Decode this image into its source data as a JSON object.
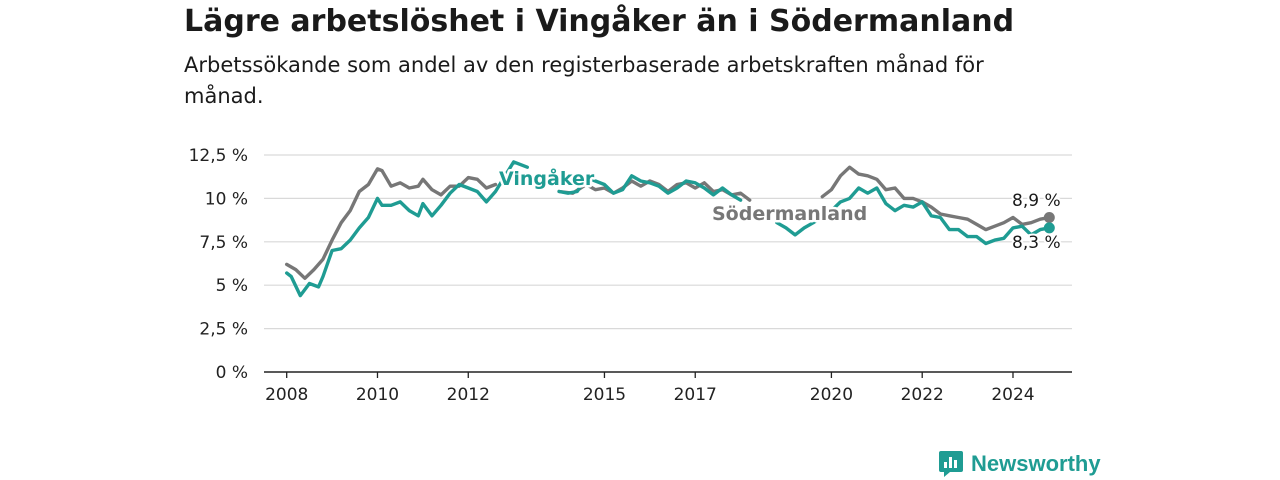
{
  "title": "Lägre arbetslöshet i Vingåker än i Södermanland",
  "subtitle": "Arbetssökande som andel av den registerbaserade arbetskraften månad för månad.",
  "brand": {
    "name": "Newsworthy",
    "icon": "newsworthy-logo-icon"
  },
  "colors": {
    "vingaker": "#1f9c93",
    "sodermanland": "#777777",
    "grid": "#d9d9d9",
    "axis": "#222222"
  },
  "chart_data": {
    "type": "line",
    "title": "",
    "xlabel": "",
    "ylabel": "",
    "xlim": [
      2007.5,
      2025.3
    ],
    "ylim": [
      0,
      12.5
    ],
    "y_ticks": [
      0,
      2.5,
      5,
      7.5,
      10,
      12.5
    ],
    "y_tick_labels": [
      "0 %",
      "2,5 %",
      "5 %",
      "7,5 %",
      "10 %",
      "12,5 %"
    ],
    "x_ticks": [
      2008,
      2010,
      2012,
      2015,
      2017,
      2020,
      2022,
      2024
    ],
    "x_tick_labels": [
      "2008",
      "2010",
      "2012",
      "2015",
      "2017",
      "2020",
      "2022",
      "2024"
    ],
    "grid": true,
    "legend": "inline labels",
    "series": [
      {
        "name": "Södermanland",
        "label": "Södermanland",
        "end_label": "8,9 %",
        "color": "#777777",
        "points": [
          [
            2008.0,
            6.2
          ],
          [
            2008.2,
            5.9
          ],
          [
            2008.4,
            5.4
          ],
          [
            2008.6,
            5.9
          ],
          [
            2008.8,
            6.5
          ],
          [
            2009.0,
            7.6
          ],
          [
            2009.2,
            8.6
          ],
          [
            2009.4,
            9.3
          ],
          [
            2009.6,
            10.4
          ],
          [
            2009.8,
            10.8
          ],
          [
            2010.0,
            11.7
          ],
          [
            2010.1,
            11.6
          ],
          [
            2010.3,
            10.7
          ],
          [
            2010.5,
            10.9
          ],
          [
            2010.7,
            10.6
          ],
          [
            2010.9,
            10.7
          ],
          [
            2011.0,
            11.1
          ],
          [
            2011.2,
            10.5
          ],
          [
            2011.4,
            10.2
          ],
          [
            2011.6,
            10.7
          ],
          [
            2011.8,
            10.7
          ],
          [
            2012.0,
            11.2
          ],
          [
            2012.2,
            11.1
          ],
          [
            2012.4,
            10.6
          ],
          [
            2012.6,
            10.8
          ],
          [
            2014.0,
            10.4
          ],
          [
            2014.3,
            10.3
          ],
          [
            2014.6,
            10.8
          ],
          [
            2014.8,
            10.5
          ],
          [
            2015.0,
            10.6
          ],
          [
            2015.2,
            10.3
          ],
          [
            2015.4,
            10.6
          ],
          [
            2015.6,
            11.0
          ],
          [
            2015.8,
            10.7
          ],
          [
            2016.0,
            11.0
          ],
          [
            2016.2,
            10.8
          ],
          [
            2016.4,
            10.4
          ],
          [
            2016.6,
            10.8
          ],
          [
            2016.8,
            10.9
          ],
          [
            2017.0,
            10.6
          ],
          [
            2017.2,
            10.9
          ],
          [
            2017.4,
            10.4
          ],
          [
            2017.6,
            10.5
          ],
          [
            2017.8,
            10.2
          ],
          [
            2018.0,
            10.3
          ],
          [
            2018.2,
            9.9
          ],
          [
            2019.8,
            10.1
          ],
          [
            2020.0,
            10.5
          ],
          [
            2020.2,
            11.3
          ],
          [
            2020.4,
            11.8
          ],
          [
            2020.6,
            11.4
          ],
          [
            2020.8,
            11.3
          ],
          [
            2021.0,
            11.1
          ],
          [
            2021.2,
            10.5
          ],
          [
            2021.4,
            10.6
          ],
          [
            2021.6,
            10.0
          ],
          [
            2021.8,
            10.0
          ],
          [
            2022.0,
            9.8
          ],
          [
            2022.2,
            9.5
          ],
          [
            2022.4,
            9.1
          ],
          [
            2022.6,
            9.0
          ],
          [
            2022.8,
            8.9
          ],
          [
            2023.0,
            8.8
          ],
          [
            2023.2,
            8.5
          ],
          [
            2023.4,
            8.2
          ],
          [
            2023.6,
            8.4
          ],
          [
            2023.8,
            8.6
          ],
          [
            2024.0,
            8.9
          ],
          [
            2024.2,
            8.5
          ],
          [
            2024.4,
            8.6
          ],
          [
            2024.6,
            8.8
          ],
          [
            2024.8,
            8.9
          ]
        ]
      },
      {
        "name": "Vingåker",
        "label": "Vingåker",
        "end_label": "8,3 %",
        "color": "#1f9c93",
        "points": [
          [
            2008.0,
            5.7
          ],
          [
            2008.1,
            5.5
          ],
          [
            2008.3,
            4.4
          ],
          [
            2008.5,
            5.1
          ],
          [
            2008.7,
            4.9
          ],
          [
            2008.8,
            5.5
          ],
          [
            2009.0,
            7.0
          ],
          [
            2009.2,
            7.1
          ],
          [
            2009.4,
            7.6
          ],
          [
            2009.6,
            8.3
          ],
          [
            2009.8,
            8.9
          ],
          [
            2010.0,
            10.0
          ],
          [
            2010.1,
            9.6
          ],
          [
            2010.3,
            9.6
          ],
          [
            2010.5,
            9.8
          ],
          [
            2010.7,
            9.3
          ],
          [
            2010.9,
            9.0
          ],
          [
            2011.0,
            9.7
          ],
          [
            2011.2,
            9.0
          ],
          [
            2011.4,
            9.6
          ],
          [
            2011.6,
            10.3
          ],
          [
            2011.8,
            10.8
          ],
          [
            2012.0,
            10.6
          ],
          [
            2012.2,
            10.4
          ],
          [
            2012.4,
            9.8
          ],
          [
            2012.6,
            10.4
          ],
          [
            2013.0,
            12.1
          ],
          [
            2013.3,
            11.8
          ],
          [
            2014.0,
            10.4
          ],
          [
            2014.2,
            10.3
          ],
          [
            2014.4,
            10.4
          ],
          [
            2014.6,
            11.2
          ],
          [
            2014.8,
            11.0
          ],
          [
            2015.0,
            10.8
          ],
          [
            2015.2,
            10.3
          ],
          [
            2015.4,
            10.5
          ],
          [
            2015.6,
            11.3
          ],
          [
            2015.8,
            11.0
          ],
          [
            2016.0,
            10.9
          ],
          [
            2016.2,
            10.7
          ],
          [
            2016.4,
            10.3
          ],
          [
            2016.6,
            10.6
          ],
          [
            2016.8,
            11.0
          ],
          [
            2017.0,
            10.9
          ],
          [
            2017.2,
            10.6
          ],
          [
            2017.4,
            10.2
          ],
          [
            2017.6,
            10.6
          ],
          [
            2017.8,
            10.2
          ],
          [
            2018.0,
            9.9
          ],
          [
            2018.8,
            8.6
          ],
          [
            2019.0,
            8.3
          ],
          [
            2019.2,
            7.9
          ],
          [
            2019.4,
            8.3
          ],
          [
            2019.6,
            8.6
          ],
          [
            2020.0,
            9.3
          ],
          [
            2020.2,
            9.8
          ],
          [
            2020.4,
            10.0
          ],
          [
            2020.6,
            10.6
          ],
          [
            2020.8,
            10.3
          ],
          [
            2021.0,
            10.6
          ],
          [
            2021.2,
            9.7
          ],
          [
            2021.4,
            9.3
          ],
          [
            2021.6,
            9.6
          ],
          [
            2021.8,
            9.5
          ],
          [
            2022.0,
            9.8
          ],
          [
            2022.2,
            9.0
          ],
          [
            2022.4,
            8.9
          ],
          [
            2022.6,
            8.2
          ],
          [
            2022.8,
            8.2
          ],
          [
            2023.0,
            7.8
          ],
          [
            2023.2,
            7.8
          ],
          [
            2023.4,
            7.4
          ],
          [
            2023.6,
            7.6
          ],
          [
            2023.8,
            7.7
          ],
          [
            2024.0,
            8.3
          ],
          [
            2024.2,
            8.4
          ],
          [
            2024.4,
            7.9
          ],
          [
            2024.6,
            8.2
          ],
          [
            2024.8,
            8.3
          ]
        ]
      }
    ]
  }
}
